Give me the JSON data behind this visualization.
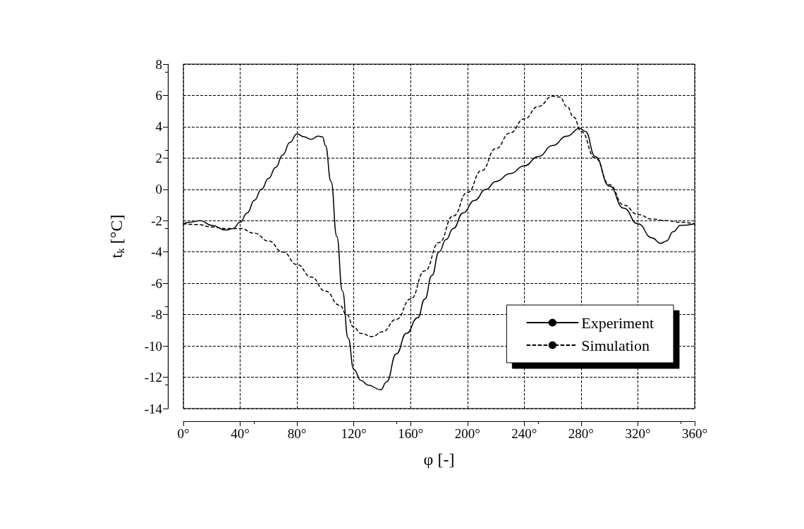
{
  "chart_data": {
    "type": "line",
    "xlabel": "φ [-]",
    "ylabel": "t$_{k}$ [°C]",
    "xlim": [
      0,
      360
    ],
    "xticks": [
      {
        "value": 0,
        "label": "0°"
      },
      {
        "value": 40,
        "label": "40°"
      },
      {
        "value": 80,
        "label": "80°"
      },
      {
        "value": 120,
        "label": "120°"
      },
      {
        "value": 160,
        "label": "160°"
      },
      {
        "value": 200,
        "label": "200°"
      },
      {
        "value": 240,
        "label": "240°"
      },
      {
        "value": 280,
        "label": "280°"
      },
      {
        "value": 320,
        "label": "320°"
      },
      {
        "value": 360,
        "label": "360°"
      }
    ],
    "ylim": [
      -14,
      8
    ],
    "yticks": [
      -14,
      -12,
      -10,
      -8,
      -6,
      -4,
      -2,
      0,
      2,
      4,
      6,
      8
    ],
    "grid": true,
    "legend": "bottom right",
    "marker": "none",
    "series": [
      {
        "name": "Experiment",
        "color": "#000000",
        "line_style": "solid",
        "x": [
          0,
          5,
          12,
          20,
          30,
          35,
          40,
          45,
          50,
          55,
          60,
          65,
          70,
          75,
          80,
          85,
          90,
          95,
          98,
          100,
          104,
          108,
          112,
          116,
          120,
          125,
          130,
          139,
          143,
          150,
          157,
          165,
          170,
          175,
          180,
          185,
          190,
          197,
          205,
          213,
          220,
          230,
          240,
          250,
          260,
          270,
          279,
          283,
          290,
          300,
          310,
          320,
          330,
          336,
          340,
          345,
          350,
          360
        ],
        "values": [
          -2.2,
          -2.1,
          -2.0,
          -2.3,
          -2.6,
          -2.5,
          -2.1,
          -1.5,
          -0.7,
          0,
          0.7,
          1.4,
          2.2,
          3.0,
          3.55,
          3.35,
          3.2,
          3.4,
          3.35,
          2.8,
          0.5,
          -3,
          -6.5,
          -9.5,
          -11.5,
          -12.2,
          -12.5,
          -12.8,
          -12.3,
          -10.5,
          -9.2,
          -8.2,
          -7,
          -5.5,
          -4,
          -3.2,
          -2.5,
          -1.5,
          -0.7,
          0,
          0.5,
          1.0,
          1.5,
          2.1,
          2.8,
          3.4,
          3.9,
          3.7,
          2.1,
          0.2,
          -1.2,
          -2.2,
          -3.1,
          -3.45,
          -3.3,
          -2.7,
          -2.3,
          -2.2
        ]
      },
      {
        "name": "Simulation",
        "color": "#000000",
        "line_style": "dashed",
        "x": [
          0,
          10,
          20,
          30,
          40,
          50,
          60,
          70,
          80,
          90,
          100,
          110,
          115,
          120,
          125,
          133,
          140,
          150,
          160,
          170,
          180,
          190,
          200,
          210,
          220,
          230,
          240,
          250,
          260,
          265,
          270,
          275,
          280,
          290,
          300,
          310,
          320,
          330,
          340,
          350,
          360
        ],
        "values": [
          -2.2,
          -2.25,
          -2.4,
          -2.5,
          -2.5,
          -2.8,
          -3.3,
          -4,
          -4.8,
          -5.6,
          -6.5,
          -7.4,
          -8,
          -8.8,
          -9.2,
          -9.4,
          -9.1,
          -8.3,
          -7,
          -5.2,
          -3.4,
          -1.7,
          -0.2,
          1.2,
          2.6,
          3.6,
          4.5,
          5.3,
          5.95,
          5.9,
          5.3,
          4.6,
          3.7,
          2.0,
          0.3,
          -1.0,
          -1.6,
          -1.9,
          -2.0,
          -2.1,
          -2.2
        ]
      }
    ]
  }
}
